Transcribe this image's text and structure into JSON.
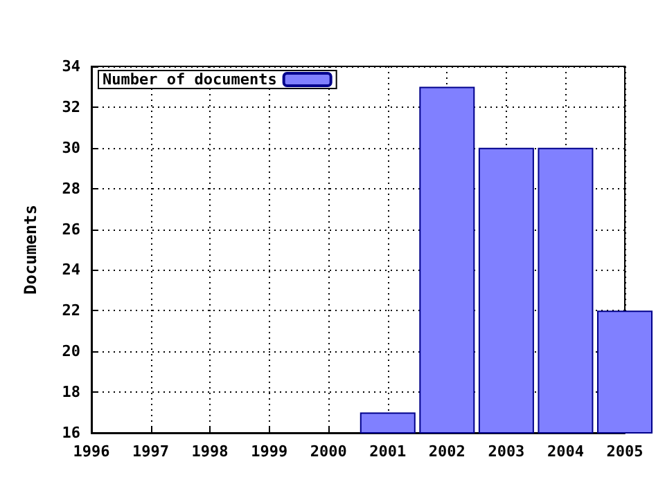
{
  "chart_data": {
    "type": "bar",
    "ylabel": "Documents",
    "x": [
      2001,
      2002,
      2003,
      2004,
      2005
    ],
    "series": [
      {
        "name": "Number of documents",
        "color": "#8080ff",
        "values": [
          17,
          33,
          30,
          30,
          22
        ]
      }
    ],
    "xlim": [
      1996,
      2005
    ],
    "xticks": [
      1996,
      1997,
      1998,
      1999,
      2000,
      2001,
      2002,
      2003,
      2004,
      2005
    ],
    "ylim": [
      16,
      34
    ],
    "yticks": [
      16,
      18,
      20,
      22,
      24,
      26,
      28,
      30,
      32,
      34
    ],
    "grid": true,
    "legend": "top left"
  }
}
